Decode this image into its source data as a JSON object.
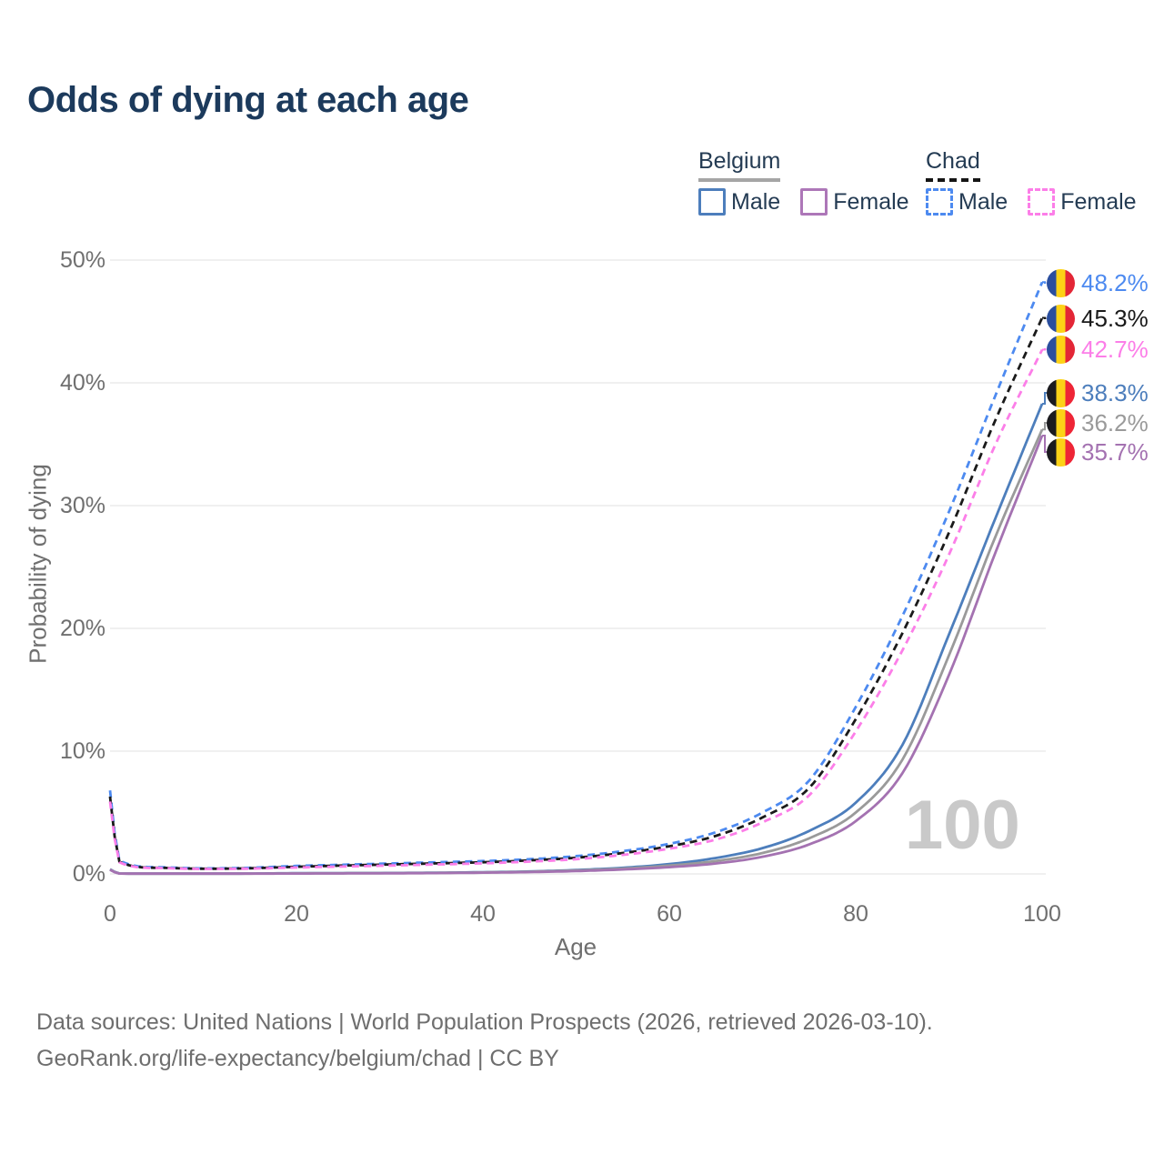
{
  "title": "Odds of dying at each age",
  "age_cursor": "100",
  "legend": {
    "belgium_label": "Belgium",
    "belgium_male_label": "Male",
    "belgium_female_label": "Female",
    "chad_label": "Chad",
    "chad_male_label": "Male",
    "chad_female_label": "Female"
  },
  "axes": {
    "y_title": "Probability of dying",
    "x_title": "Age",
    "y_ticks": [
      "0%",
      "10%",
      "20%",
      "30%",
      "40%",
      "50%"
    ],
    "x_ticks": [
      "0",
      "20",
      "40",
      "60",
      "80",
      "100"
    ]
  },
  "footer": {
    "line1": "Data sources: United Nations | World Population Prospects (2026, retrieved 2026-03-10).",
    "line2": "GeoRank.org/life-expectancy/belgium/chad | CC BY"
  },
  "colors": {
    "belgium_male": "#4d7ebc",
    "belgium_both": "#9a9a9a",
    "belgium_female": "#a472b1",
    "chad_male": "#4d8af0",
    "chad_both": "#1a1a1a",
    "chad_female": "#fc7ee8",
    "grid": "#ebebeb",
    "title_text": "#1c3a5c",
    "axis_text": "#6f6f6f",
    "watermark": "#c9c9c9"
  },
  "chart_data": {
    "type": "line",
    "title": "Odds of dying at each age",
    "xlabel": "Age",
    "ylabel": "Probability of dying",
    "xlim": [
      0,
      100
    ],
    "ylim": [
      0,
      50
    ],
    "grid": true,
    "legend_position": "top-right",
    "y_unit": "%",
    "x": [
      0,
      1,
      5,
      10,
      15,
      20,
      25,
      30,
      35,
      40,
      45,
      50,
      55,
      60,
      65,
      70,
      75,
      80,
      85,
      90,
      95,
      100
    ],
    "series": [
      {
        "name": "Chad Male",
        "country": "chad",
        "sex": "male",
        "color": "#4d8af0",
        "dash": true,
        "end_label": "48.2%",
        "values": [
          6.8,
          1.1,
          0.55,
          0.45,
          0.5,
          0.65,
          0.75,
          0.85,
          0.95,
          1.05,
          1.2,
          1.45,
          1.85,
          2.45,
          3.4,
          5.0,
          7.6,
          13.6,
          21.0,
          29.5,
          39.0,
          48.2
        ]
      },
      {
        "name": "Chad Both sexes",
        "country": "chad",
        "sex": "both",
        "color": "#1a1a1a",
        "dash": true,
        "end_label": "45.3%",
        "values": [
          6.3,
          1.0,
          0.5,
          0.42,
          0.46,
          0.58,
          0.68,
          0.77,
          0.86,
          0.95,
          1.1,
          1.32,
          1.7,
          2.25,
          3.1,
          4.6,
          7.0,
          12.6,
          19.6,
          27.8,
          37.0,
          45.3
        ]
      },
      {
        "name": "Chad Female",
        "country": "chad",
        "sex": "female",
        "color": "#fc7ee8",
        "dash": true,
        "end_label": "42.7%",
        "values": [
          5.9,
          0.95,
          0.48,
          0.4,
          0.43,
          0.52,
          0.6,
          0.68,
          0.77,
          0.86,
          1.0,
          1.2,
          1.55,
          2.05,
          2.8,
          4.2,
          6.4,
          11.6,
          18.2,
          26.0,
          35.0,
          42.7
        ]
      },
      {
        "name": "Belgium Male",
        "country": "belgium",
        "sex": "male",
        "color": "#4d7ebc",
        "dash": false,
        "end_label": "38.3%",
        "values": [
          0.38,
          0.04,
          0.01,
          0.01,
          0.03,
          0.06,
          0.07,
          0.08,
          0.1,
          0.14,
          0.2,
          0.32,
          0.5,
          0.8,
          1.3,
          2.1,
          3.5,
          5.8,
          10.5,
          19.5,
          29.0,
          38.3
        ]
      },
      {
        "name": "Belgium Both sexes",
        "country": "belgium",
        "sex": "both",
        "color": "#9a9a9a",
        "dash": false,
        "end_label": "36.2%",
        "values": [
          0.36,
          0.035,
          0.01,
          0.01,
          0.025,
          0.045,
          0.055,
          0.065,
          0.085,
          0.12,
          0.18,
          0.28,
          0.43,
          0.68,
          1.05,
          1.7,
          2.9,
          5.0,
          9.3,
          17.8,
          27.5,
          36.2
        ]
      },
      {
        "name": "Belgium Female",
        "country": "belgium",
        "sex": "female",
        "color": "#a472b1",
        "dash": false,
        "end_label": "35.7%",
        "values": [
          0.33,
          0.03,
          0.01,
          0.01,
          0.02,
          0.03,
          0.04,
          0.05,
          0.07,
          0.1,
          0.15,
          0.23,
          0.36,
          0.55,
          0.85,
          1.4,
          2.4,
          4.3,
          8.2,
          16.2,
          26.2,
          35.7
        ]
      }
    ]
  }
}
